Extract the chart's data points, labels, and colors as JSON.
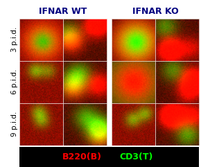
{
  "col_headers": [
    "IFNAR WT",
    "IFNAR KO"
  ],
  "col_header_color": "#000080",
  "row_labels": [
    "3 p.i.d.",
    "6 p.i.d.",
    "9 p.i.d."
  ],
  "legend_items": [
    {
      "label": "B220(B)",
      "color": "#ff0000"
    },
    {
      "label": "CD3(T)",
      "color": "#00ff00"
    }
  ],
  "background_color": "#000000",
  "n_rows": 3,
  "n_cols": 4,
  "header_fontsize": 9,
  "row_label_fontsize": 7.5,
  "legend_fontsize": 9,
  "col_header_fontweight": "bold"
}
